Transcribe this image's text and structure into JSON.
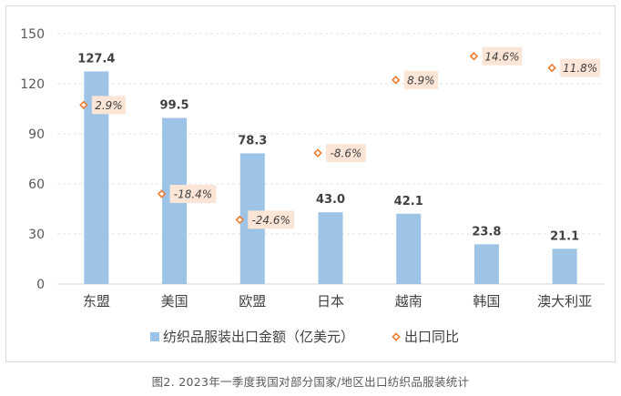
{
  "chart_data": {
    "type": "bar",
    "categories": [
      "东盟",
      "美国",
      "欧盟",
      "日本",
      "越南",
      "韩国",
      "澳大利亚"
    ],
    "series": [
      {
        "name": "纺织品服装出口金额（亿美元）",
        "type": "bar",
        "axis": "left",
        "values": [
          127.4,
          99.5,
          78.3,
          43.0,
          42.1,
          23.8,
          21.1
        ],
        "labels": [
          "127.4",
          "99.5",
          "78.3",
          "43.0",
          "42.1",
          "23.8",
          "21.1"
        ],
        "color": "#9dc3e6"
      },
      {
        "name": "出口同比",
        "type": "scatter",
        "axis": "secondary-hidden",
        "values": [
          2.9,
          -18.4,
          -24.6,
          -8.6,
          8.9,
          14.6,
          11.8
        ],
        "labels": [
          "2.9%",
          "-18.4%",
          "-24.6%",
          "-8.6%",
          "8.9%",
          "14.6%",
          "11.8%"
        ],
        "marker": "diamond",
        "color": "#ed7d31",
        "label_bg": "#fbe5d6"
      }
    ],
    "ylim": [
      0,
      150
    ],
    "yticks": [
      0,
      30,
      60,
      90,
      120,
      150
    ],
    "y2lim": [
      -40,
      20
    ],
    "grid": true,
    "legend": "bottom"
  },
  "caption": "图2. 2023年一季度我国对部分国家/地区出口纺织品服装统计"
}
